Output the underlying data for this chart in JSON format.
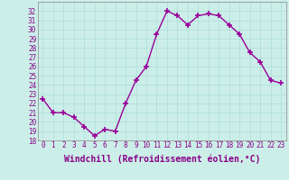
{
  "x": [
    0,
    1,
    2,
    3,
    4,
    5,
    6,
    7,
    8,
    9,
    10,
    11,
    12,
    13,
    14,
    15,
    16,
    17,
    18,
    19,
    20,
    21,
    22,
    23
  ],
  "y": [
    22.5,
    21.0,
    21.0,
    20.5,
    19.5,
    18.5,
    19.2,
    19.0,
    22.0,
    24.5,
    26.0,
    29.5,
    32.0,
    31.5,
    30.5,
    31.5,
    31.7,
    31.5,
    30.5,
    29.5,
    27.5,
    26.5,
    24.5,
    24.2
  ],
  "line_color": "#990099",
  "marker": "+",
  "marker_size": 4,
  "marker_lw": 1.2,
  "xlabel": "Windchill (Refroidissement éolien,°C)",
  "xlabel_fontsize": 7,
  "bg_color": "#cceee8",
  "grid_color": "#aaddda",
  "xlim": [
    -0.5,
    23.5
  ],
  "ylim": [
    18,
    33
  ],
  "yticks": [
    18,
    19,
    20,
    21,
    22,
    23,
    24,
    25,
    26,
    27,
    28,
    29,
    30,
    31,
    32
  ],
  "xticks": [
    0,
    1,
    2,
    3,
    4,
    5,
    6,
    7,
    8,
    9,
    10,
    11,
    12,
    13,
    14,
    15,
    16,
    17,
    18,
    19,
    20,
    21,
    22,
    23
  ],
  "tick_fontsize": 5.5,
  "spine_color": "#888888",
  "line_width": 1.0
}
